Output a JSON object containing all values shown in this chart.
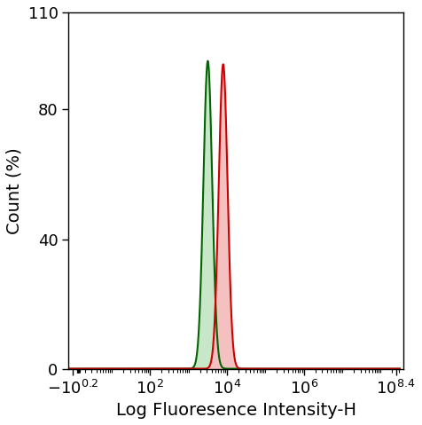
{
  "xlabel": "Log Fluoresence Intensity-H",
  "ylabel": "Count (%)",
  "ylim": [
    0,
    110
  ],
  "yticks": [
    0,
    40,
    80,
    110
  ],
  "green_peak_log": 3.5,
  "green_sigma_log": 0.115,
  "green_peak_height": 95,
  "red_peak_log": 3.9,
  "red_sigma_log": 0.115,
  "red_peak_height": 94,
  "green_color": "#006400",
  "red_color": "#cc0000",
  "green_fill": "#c8e6c8",
  "red_fill": "#f5c0c0",
  "background": "#ffffff",
  "xlabel_fontsize": 14,
  "ylabel_fontsize": 14,
  "tick_fontsize": 13,
  "linthresh": 1.58,
  "xlim_left": -2.0,
  "xlim_right": 398000000.0
}
